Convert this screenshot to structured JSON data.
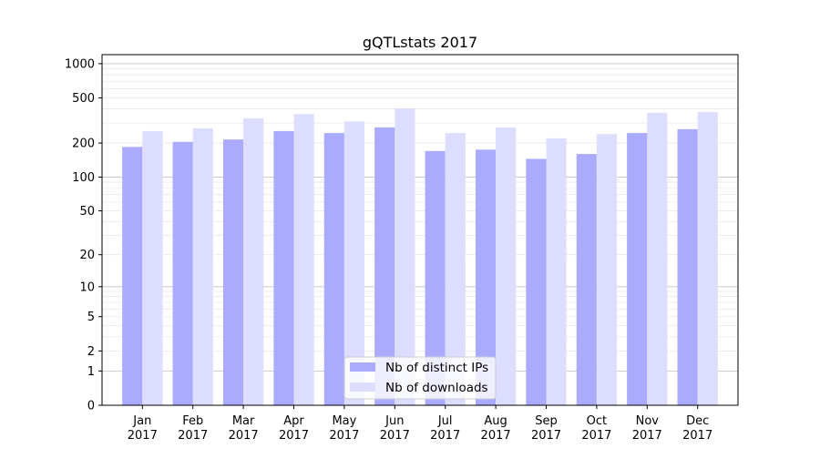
{
  "chart_data": {
    "type": "bar",
    "title": "gQTLstats 2017",
    "xlabel": "",
    "ylabel": "",
    "y_scale": "log(1+y)",
    "ylim": [
      0,
      1200
    ],
    "y_ticks": [
      0,
      1,
      2,
      5,
      10,
      20,
      50,
      100,
      200,
      500,
      1000
    ],
    "y_tick_labels": [
      "0",
      "1",
      "2",
      "5",
      "10",
      "20",
      "50",
      "100",
      "200",
      "500",
      "1000"
    ],
    "categories": [
      [
        "Jan",
        "2017"
      ],
      [
        "Feb",
        "2017"
      ],
      [
        "Mar",
        "2017"
      ],
      [
        "Apr",
        "2017"
      ],
      [
        "May",
        "2017"
      ],
      [
        "Jun",
        "2017"
      ],
      [
        "Jul",
        "2017"
      ],
      [
        "Aug",
        "2017"
      ],
      [
        "Sep",
        "2017"
      ],
      [
        "Oct",
        "2017"
      ],
      [
        "Nov",
        "2017"
      ],
      [
        "Dec",
        "2017"
      ]
    ],
    "series": [
      {
        "name": "Nb of distinct IPs",
        "color": "#aaaaff",
        "values": [
          185,
          205,
          215,
          255,
          245,
          275,
          170,
          175,
          145,
          160,
          245,
          265
        ]
      },
      {
        "name": "Nb of downloads",
        "color": "#ddddff",
        "values": [
          255,
          270,
          330,
          360,
          310,
          405,
          245,
          275,
          220,
          240,
          370,
          375
        ]
      }
    ],
    "grid": true,
    "legend_position": "bottom-center"
  }
}
